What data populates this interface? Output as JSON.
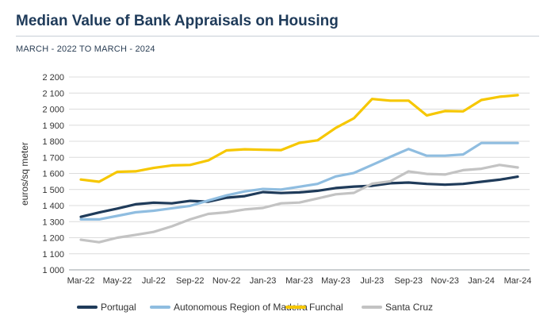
{
  "header": {
    "title": "Median Value of Bank Appraisals on Housing",
    "subtitle": "MARCH - 2022 TO MARCH - 2024"
  },
  "chart_data": {
    "type": "line",
    "title": "Median Value of Bank Appraisals on Housing",
    "subtitle": "MARCH - 2022 TO MARCH - 2024",
    "ylabel": "euros/sq meter",
    "xlabel": "",
    "ylim": [
      1000,
      2200
    ],
    "yticks": [
      1000,
      1100,
      1200,
      1300,
      1400,
      1500,
      1600,
      1700,
      1800,
      1900,
      2000,
      2100,
      2200
    ],
    "ytick_labels": [
      "1 000",
      "1 100",
      "1 200",
      "1 300",
      "1 400",
      "1 500",
      "1 600",
      "1 700",
      "1 800",
      "1 900",
      "2 000",
      "2 100",
      "2 200"
    ],
    "grid": true,
    "legend_position": "bottom",
    "categories": [
      "Mar-22",
      "Apr-22",
      "May-22",
      "Jun-22",
      "Jul-22",
      "Aug-22",
      "Sep-22",
      "Oct-22",
      "Nov-22",
      "Dec-22",
      "Jan-23",
      "Feb-23",
      "Mar-23",
      "Apr-23",
      "May-23",
      "Jun-23",
      "Jul-23",
      "Aug-23",
      "Sep-23",
      "Oct-23",
      "Nov-23",
      "Dec-23",
      "Jan-24",
      "Feb-24",
      "Mar-24"
    ],
    "x_tick_labels": [
      "Mar-22",
      "May-22",
      "Jul-22",
      "Sep-22",
      "Nov-22",
      "Jan-23",
      "Mar-23",
      "May-23",
      "Jul-23",
      "Sep-23",
      "Nov-23",
      "Jan-24",
      "Mar-24"
    ],
    "series": [
      {
        "name": "Portugal",
        "color": "#1f3b5a",
        "values": [
          1330,
          1357,
          1381,
          1408,
          1418,
          1414,
          1429,
          1424,
          1449,
          1459,
          1484,
          1478,
          1482,
          1492,
          1509,
          1518,
          1523,
          1539,
          1543,
          1535,
          1530,
          1535,
          1548,
          1561,
          1580
        ]
      },
      {
        "name": "Autonomous Region of Madeira",
        "color": "#8fbde0",
        "values": [
          1314,
          1314,
          1336,
          1358,
          1368,
          1383,
          1398,
          1431,
          1463,
          1488,
          1503,
          1500,
          1517,
          1535,
          1581,
          1603,
          1653,
          1703,
          1752,
          1710,
          1710,
          1718,
          1789,
          1789,
          1789
        ]
      },
      {
        "name": "Funchal",
        "color": "#f6c700",
        "values": [
          1562,
          1548,
          1610,
          1613,
          1634,
          1650,
          1653,
          1681,
          1743,
          1750,
          1747,
          1745,
          1790,
          1806,
          1883,
          1943,
          2063,
          2053,
          2053,
          1961,
          1988,
          1986,
          2057,
          2077,
          2087
        ]
      },
      {
        "name": "Santa Cruz",
        "color": "#c3c3c3",
        "values": [
          1187,
          1172,
          1200,
          1218,
          1236,
          1271,
          1314,
          1348,
          1358,
          1376,
          1385,
          1414,
          1419,
          1444,
          1470,
          1479,
          1536,
          1551,
          1613,
          1597,
          1593,
          1620,
          1629,
          1653,
          1637
        ]
      }
    ]
  }
}
